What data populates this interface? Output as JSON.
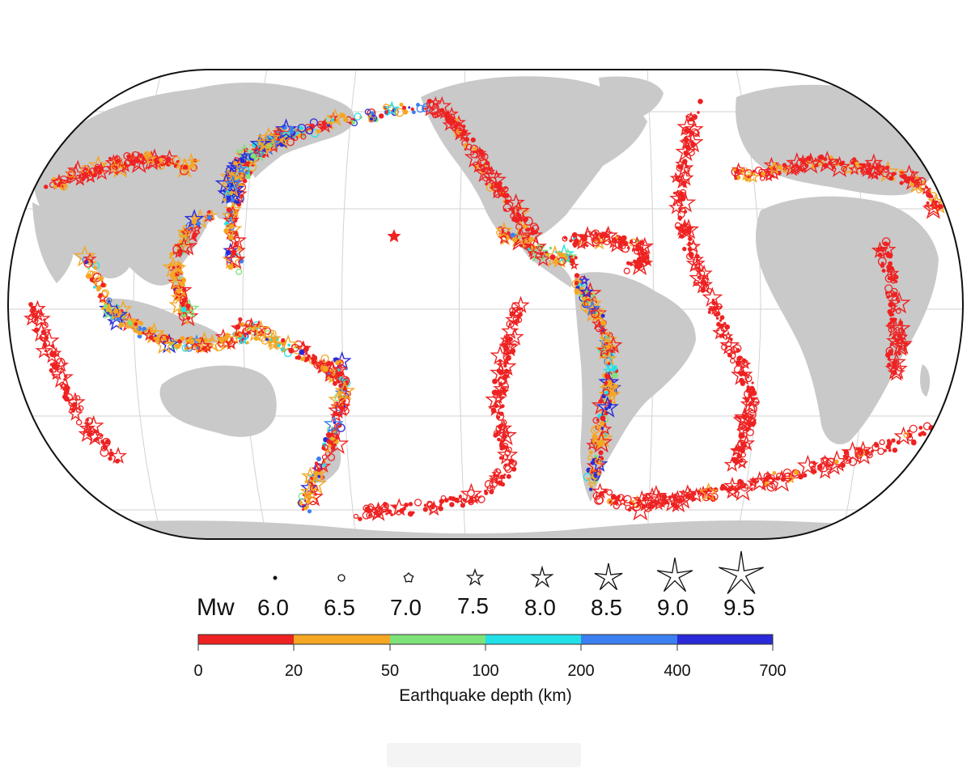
{
  "legend": {
    "mw_label": "Mw",
    "magnitudes": [
      {
        "value": "6.0",
        "symbol": "dot"
      },
      {
        "value": "6.5",
        "symbol": "circle"
      },
      {
        "value": "7.0",
        "symbol": "pentagon"
      },
      {
        "value": "7.5",
        "symbol": "star"
      },
      {
        "value": "8.0",
        "symbol": "star"
      },
      {
        "value": "8.5",
        "symbol": "star"
      },
      {
        "value": "9.0",
        "symbol": "star"
      },
      {
        "value": "9.5",
        "symbol": "star"
      }
    ],
    "depth_title": "Earthquake depth (km)",
    "depth_ticks": [
      "0",
      "20",
      "50",
      "100",
      "200",
      "400",
      "700"
    ],
    "depth_colors": [
      "#ee2222",
      "#f5a623",
      "#7ee27a",
      "#22e0e8",
      "#3b7ff0",
      "#2a2ad8"
    ]
  },
  "map": {
    "land_color": "#c9c9c9",
    "ocean_color": "#ffffff",
    "graticule_color": "#cfcfcf"
  }
}
